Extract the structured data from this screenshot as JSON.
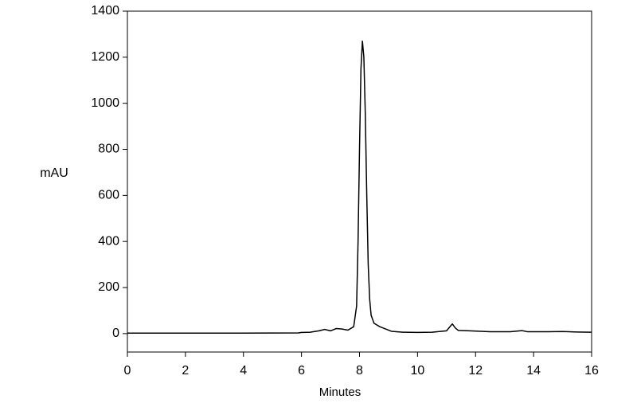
{
  "chart_data": {
    "type": "line",
    "x_label": "Minutes",
    "y_label": "mAU",
    "x": [
      0,
      2,
      4,
      5.9,
      6.0,
      6.3,
      6.6,
      6.8,
      7.0,
      7.2,
      7.4,
      7.6,
      7.8,
      7.9,
      7.95,
      8.0,
      8.05,
      8.1,
      8.15,
      8.2,
      8.25,
      8.3,
      8.35,
      8.4,
      8.5,
      8.7,
      8.9,
      9.1,
      9.5,
      10,
      10.5,
      11.0,
      11.15,
      11.2,
      11.3,
      11.4,
      11.8,
      12.5,
      13.2,
      13.6,
      13.8,
      14.5,
      15,
      15.5,
      16
    ],
    "values": [
      2,
      2,
      2,
      3,
      5,
      6,
      12,
      18,
      12,
      22,
      20,
      15,
      30,
      120,
      400,
      800,
      1150,
      1270,
      1200,
      950,
      600,
      300,
      150,
      80,
      45,
      30,
      20,
      10,
      6,
      5,
      6,
      12,
      35,
      42,
      25,
      14,
      12,
      8,
      8,
      13,
      8,
      8,
      9,
      7,
      6
    ],
    "color": "#000000",
    "xlim": [
      0,
      16
    ],
    "xticks": [
      0,
      2,
      4,
      6,
      8,
      10,
      12,
      14,
      16
    ],
    "ylim": [
      -80,
      1400
    ],
    "yticks": [
      0,
      200,
      400,
      600,
      800,
      1000,
      1200,
      1400
    ],
    "grid": false
  }
}
